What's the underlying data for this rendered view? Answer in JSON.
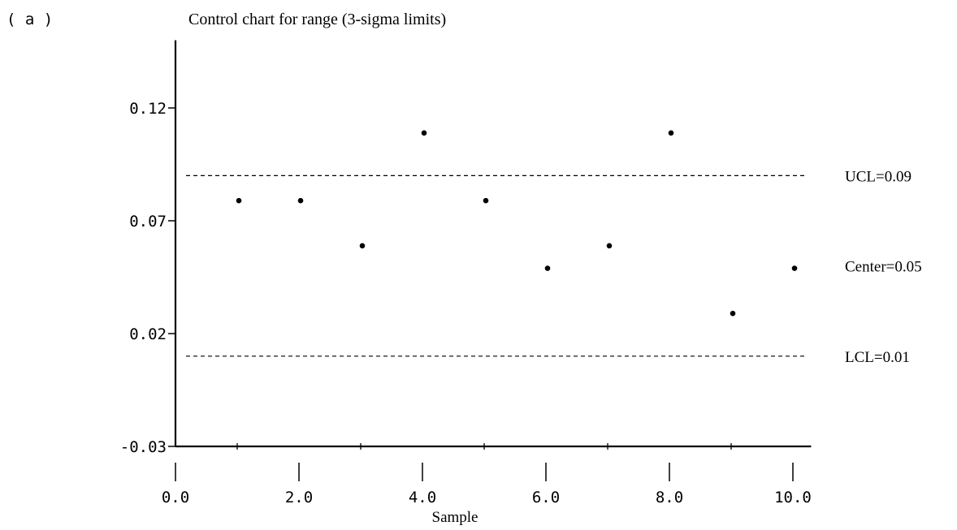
{
  "panel_label": "( a )",
  "chart_data": {
    "type": "scatter",
    "title": "Control chart for range (3-sigma limits)",
    "xlabel": "Sample",
    "ylabel": "",
    "xlim": [
      0,
      10.4
    ],
    "ylim": [
      -0.03,
      0.15
    ],
    "x_ticks": [
      0,
      2,
      4,
      6,
      8,
      10
    ],
    "x_tick_labels": [
      "0.0",
      "2.0",
      "4.0",
      "6.0",
      "8.0",
      "10.0"
    ],
    "x_minor_ticks": [
      1,
      3,
      5,
      7,
      9
    ],
    "y_ticks": [
      0.12,
      0.07,
      0.02,
      -0.03
    ],
    "y_tick_labels": [
      "0.12",
      "0.07",
      "0.02",
      "-0.03"
    ],
    "grid": false,
    "points": [
      {
        "x": 1,
        "y": 0.08
      },
      {
        "x": 2,
        "y": 0.08
      },
      {
        "x": 3,
        "y": 0.06
      },
      {
        "x": 4,
        "y": 0.11
      },
      {
        "x": 5,
        "y": 0.08
      },
      {
        "x": 6,
        "y": 0.05
      },
      {
        "x": 7,
        "y": 0.06
      },
      {
        "x": 8,
        "y": 0.11
      },
      {
        "x": 9,
        "y": 0.03
      },
      {
        "x": 10,
        "y": 0.05
      }
    ],
    "control_lines": [
      {
        "name": "UCL",
        "value": 0.09,
        "label": "UCL=0.09",
        "style": "dashed"
      },
      {
        "name": "Center",
        "value": 0.05,
        "label": "Center=0.05",
        "style": "none"
      },
      {
        "name": "LCL",
        "value": 0.01,
        "label": "LCL=0.01",
        "style": "dashed"
      }
    ],
    "colors": {
      "ink": "#000000",
      "background": "#ffffff"
    }
  }
}
